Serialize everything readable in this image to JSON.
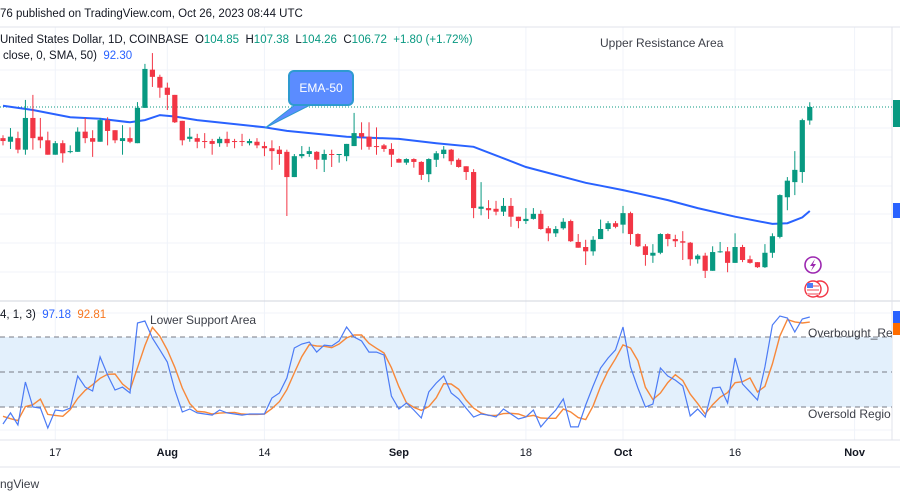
{
  "header": {
    "published": "76 published on TradingView.com, Oct 26, 2023 08:44 UTC",
    "symbol": "United States Dollar, 1D, COINBASE",
    "ohlc": {
      "open_label": "O",
      "open": "104.85",
      "high_label": "H",
      "high": "107.38",
      "low_label": "L",
      "low": "104.26",
      "close_label": "C",
      "close": "106.72",
      "change": "+1.80 (+1.72%)"
    },
    "ma_legend": "close, 0, SMA, 50)",
    "ma_value": "92.30",
    "stoch_legend": "4, 1, 3)",
    "stoch_k_value": "97.18",
    "stoch_d_value": "92.81"
  },
  "annotations": {
    "upper": "Upper Resistance Area",
    "lower": "Lower Support Area",
    "callout": "EMA-50",
    "overbought": "Overbought_Re",
    "oversold": "Oversold Regio"
  },
  "footer": {
    "watermark": "ngView"
  },
  "colors": {
    "up": "#089981",
    "down": "#f23645",
    "ma": "#2962ff",
    "stoch_k": "#4c7bf5",
    "stoch_d": "#f7883a",
    "band": "#e3f0fc"
  },
  "icons": [
    "lightning-event-icon",
    "us-flag-icon"
  ],
  "chart_data": [
    {
      "type": "candlestick",
      "title": "",
      "x_ticks": [
        {
          "date": "Jul 17",
          "label": "17"
        },
        {
          "date": "Aug 1",
          "label": "Aug",
          "bold": true
        },
        {
          "date": "Aug 14",
          "label": "14"
        },
        {
          "date": "Sep 1",
          "label": "Sep",
          "bold": true
        },
        {
          "date": "Sep 18",
          "label": "18"
        },
        {
          "date": "Oct 1",
          "label": "Oct",
          "bold": true
        },
        {
          "date": "Oct 16",
          "label": "16"
        },
        {
          "date": "Nov 1",
          "label": "Nov",
          "bold": true
        }
      ],
      "last_price": 106.72,
      "candles": [
        [
          "Jul 10",
          102.4,
          102.8,
          101.4,
          102.0
        ],
        [
          "Jul 11",
          101.9,
          103.8,
          100.9,
          102.6
        ],
        [
          "Jul 12",
          102.4,
          103.3,
          100.3,
          100.8
        ],
        [
          "Jul 13",
          100.8,
          107.7,
          100.1,
          105.2
        ],
        [
          "Jul 14",
          105.2,
          108.4,
          100.8,
          102.4
        ],
        [
          "Jul 15",
          102.6,
          105.2,
          101.0,
          102.1
        ],
        [
          "Jul 16",
          102.1,
          103.3,
          100.1,
          100.1
        ],
        [
          "Jul 17",
          100.1,
          102.0,
          100.1,
          101.7
        ],
        [
          "Jul 18",
          101.7,
          102.1,
          99.0,
          100.3
        ],
        [
          "Jul 19",
          100.5,
          101.4,
          100.3,
          100.6
        ],
        [
          "Jul 20",
          100.5,
          103.9,
          100.5,
          103.3
        ],
        [
          "Jul 21",
          103.3,
          105.2,
          101.7,
          102.4
        ],
        [
          "Jul 22",
          102.4,
          103.5,
          99.8,
          101.9
        ],
        [
          "Jul 23",
          101.9,
          105.2,
          101.9,
          104.9
        ],
        [
          "Jul 24",
          104.9,
          105.3,
          101.4,
          103.4
        ],
        [
          "Jul 25",
          103.5,
          103.5,
          101.7,
          102.1
        ],
        [
          "Jul 26",
          102.0,
          104.2,
          100.1,
          102.4
        ],
        [
          "Jul 27",
          102.4,
          103.9,
          101.7,
          101.9
        ],
        [
          "Jul 28",
          101.7,
          107.4,
          101.7,
          106.6
        ],
        [
          "Jul 29",
          106.6,
          112.7,
          106.6,
          112.0
        ],
        [
          "Jul 30",
          111.9,
          114.2,
          109.5,
          110.9
        ],
        [
          "Jul 31",
          110.9,
          111.2,
          108.0,
          109.4
        ],
        [
          "Aug 1",
          109.4,
          110.1,
          106.3,
          108.4
        ],
        [
          "Aug 2",
          108.4,
          108.4,
          104.5,
          104.6
        ],
        [
          "Aug 3",
          104.8,
          104.8,
          101.4,
          102.1
        ],
        [
          "Aug 4",
          102.3,
          103.8,
          101.9,
          102.6
        ],
        [
          "Aug 5",
          102.4,
          103.0,
          101.0,
          101.9
        ],
        [
          "Aug 6",
          102.0,
          103.1,
          101.0,
          101.9
        ],
        [
          "Aug 7",
          102.0,
          102.3,
          100.1,
          101.6
        ],
        [
          "Aug 8",
          101.7,
          102.6,
          101.2,
          102.3
        ],
        [
          "Aug 9",
          102.3,
          103.3,
          101.2,
          101.7
        ],
        [
          "Aug 10",
          102.0,
          102.3,
          101.0,
          101.9
        ],
        [
          "Aug 11",
          102.0,
          103.0,
          101.3,
          101.9
        ],
        [
          "Aug 12",
          101.7,
          102.3,
          101.4,
          102.0
        ],
        [
          "Aug 13",
          101.9,
          102.4,
          101.0,
          101.4
        ],
        [
          "Aug 14",
          101.3,
          101.9,
          99.9,
          101.0
        ],
        [
          "Aug 15",
          101.0,
          102.1,
          98.0,
          100.6
        ],
        [
          "Aug 16",
          100.8,
          101.3,
          98.7,
          100.2
        ],
        [
          "Aug 17",
          100.5,
          100.8,
          91.6,
          97.0
        ],
        [
          "Aug 18",
          97.0,
          100.2,
          97.0,
          99.9
        ],
        [
          "Aug 19",
          99.9,
          101.3,
          99.6,
          100.2
        ],
        [
          "Aug 20",
          100.2,
          101.2,
          99.8,
          100.6
        ],
        [
          "Aug 21",
          100.5,
          100.6,
          98.1,
          99.4
        ],
        [
          "Aug 22",
          99.4,
          100.8,
          97.7,
          100.2
        ],
        [
          "Aug 23",
          100.2,
          100.8,
          98.4,
          100.1
        ],
        [
          "Aug 24",
          100.1,
          100.2,
          99.0,
          100.2
        ],
        [
          "Aug 25",
          99.9,
          101.6,
          99.2,
          101.6
        ],
        [
          "Aug 26",
          101.3,
          105.9,
          101.3,
          103.1
        ],
        [
          "Aug 27",
          103.1,
          104.6,
          100.8,
          102.6
        ],
        [
          "Aug 28",
          102.6,
          104.6,
          100.8,
          101.2
        ],
        [
          "Aug 29",
          101.3,
          103.9,
          100.1,
          101.2
        ],
        [
          "Aug 30",
          101.4,
          101.6,
          100.5,
          100.9
        ],
        [
          "Aug 31",
          100.9,
          101.7,
          98.4,
          100.1
        ],
        [
          "Sep 1",
          99.5,
          99.6,
          99.0,
          99.0
        ],
        [
          "Sep 2",
          99.0,
          99.6,
          98.7,
          99.5
        ],
        [
          "Sep 3",
          99.5,
          99.6,
          98.3,
          99.1
        ],
        [
          "Sep 4",
          99.1,
          99.2,
          96.6,
          97.3
        ],
        [
          "Sep 5",
          97.4,
          99.6,
          96.3,
          99.5
        ],
        [
          "Sep 6",
          99.4,
          100.6,
          98.4,
          100.3
        ],
        [
          "Sep 7",
          100.2,
          101.3,
          99.6,
          100.8
        ],
        [
          "Sep 8",
          100.8,
          100.9,
          98.7,
          99.2
        ],
        [
          "Sep 9",
          99.4,
          99.6,
          98.3,
          98.4
        ],
        [
          "Sep 10",
          98.5,
          98.5,
          96.6,
          97.7
        ],
        [
          "Sep 11",
          97.7,
          98.1,
          91.3,
          92.7
        ],
        [
          "Sep 12",
          92.6,
          96.3,
          91.7,
          92.9
        ],
        [
          "Sep 13",
          92.7,
          93.8,
          91.2,
          92.4
        ],
        [
          "Sep 14",
          92.6,
          93.7,
          91.7,
          92.2
        ],
        [
          "Sep 15",
          92.2,
          94.1,
          91.6,
          93.0
        ],
        [
          "Sep 16",
          93.0,
          94.1,
          90.1,
          91.5
        ],
        [
          "Sep 17",
          91.5,
          91.5,
          89.9,
          90.9
        ],
        [
          "Sep 18",
          90.9,
          92.7,
          90.5,
          91.2
        ],
        [
          "Sep 19",
          91.2,
          92.7,
          91.1,
          91.9
        ],
        [
          "Sep 20",
          91.9,
          92.4,
          89.7,
          89.8
        ],
        [
          "Sep 21",
          89.9,
          90.2,
          88.1,
          89.2
        ],
        [
          "Sep 22",
          89.2,
          90.2,
          88.7,
          89.8
        ],
        [
          "Sep 23",
          89.9,
          91.3,
          89.7,
          90.8
        ],
        [
          "Sep 24",
          90.9,
          91.1,
          88.0,
          88.1
        ],
        [
          "Sep 25",
          88.0,
          89.1,
          87.2,
          87.2
        ],
        [
          "Sep 26",
          87.3,
          88.3,
          84.8,
          86.7
        ],
        [
          "Sep 27",
          86.7,
          88.8,
          86.1,
          88.3
        ],
        [
          "Sep 28",
          88.4,
          91.1,
          88.4,
          89.8
        ],
        [
          "Sep 29",
          89.8,
          90.9,
          89.5,
          90.6
        ],
        [
          "Sep 30",
          90.6,
          90.9,
          89.9,
          90.1
        ],
        [
          "Oct 1",
          90.4,
          93.0,
          89.2,
          92.0
        ],
        [
          "Oct 2",
          92.0,
          92.2,
          87.6,
          89.1
        ],
        [
          "Oct 3",
          89.1,
          89.2,
          87.3,
          87.4
        ],
        [
          "Oct 4",
          87.4,
          87.7,
          84.7,
          86.2
        ],
        [
          "Oct 5",
          86.1,
          87.7,
          85.1,
          86.5
        ],
        [
          "Oct 6",
          86.5,
          89.2,
          86.3,
          89.1
        ],
        [
          "Oct 7",
          89.1,
          89.2,
          87.4,
          88.4
        ],
        [
          "Oct 8",
          88.4,
          89.0,
          87.3,
          88.1
        ],
        [
          "Oct 9",
          88.1,
          89.5,
          85.5,
          87.9
        ],
        [
          "Oct 10",
          87.9,
          88.0,
          84.7,
          85.6
        ],
        [
          "Oct 11",
          85.6,
          86.3,
          85.0,
          86.1
        ],
        [
          "Oct 12",
          86.1,
          86.5,
          83.0,
          84.0
        ],
        [
          "Oct 13",
          84.0,
          87.4,
          84.0,
          86.6
        ],
        [
          "Oct 14",
          86.6,
          88.0,
          86.5,
          86.7
        ],
        [
          "Oct 15",
          86.7,
          87.3,
          83.8,
          85.1
        ],
        [
          "Oct 16",
          85.1,
          89.2,
          85.1,
          87.3
        ],
        [
          "Oct 17",
          87.3,
          87.6,
          85.2,
          85.5
        ],
        [
          "Oct 18",
          85.6,
          86.1,
          85.0,
          85.1
        ],
        [
          "Oct 19",
          85.2,
          85.2,
          84.4,
          84.5
        ],
        [
          "Oct 20",
          84.5,
          87.7,
          84.4,
          86.5
        ],
        [
          "Oct 21",
          86.5,
          89.2,
          85.8,
          88.8
        ],
        [
          "Oct 22",
          88.7,
          94.6,
          88.5,
          94.5
        ],
        [
          "Oct 23",
          94.2,
          97.0,
          92.4,
          96.5
        ],
        [
          "Oct 24",
          96.3,
          100.6,
          94.5,
          98.0
        ],
        [
          "Oct 25",
          97.7,
          105.1,
          96.2,
          104.9
        ],
        [
          "Oct 26",
          104.85,
          107.38,
          104.26,
          106.72
        ]
      ],
      "moving_average": [
        [
          "Jul 10",
          106.9
        ],
        [
          "Jul 14",
          106.3
        ],
        [
          "Jul 19",
          105.3
        ],
        [
          "Jul 23",
          105.1
        ],
        [
          "Jul 27",
          104.6
        ],
        [
          "Jul 29",
          104.9
        ],
        [
          "Jul 31",
          105.6
        ],
        [
          "Aug 2",
          105.4
        ],
        [
          "Aug 5",
          104.9
        ],
        [
          "Aug 14",
          103.9
        ],
        [
          "Aug 17",
          103.4
        ],
        [
          "Aug 25",
          102.6
        ],
        [
          "Sep 1",
          102.3
        ],
        [
          "Sep 6",
          101.7
        ],
        [
          "Sep 11",
          101.2
        ],
        [
          "Sep 18",
          98.4
        ],
        [
          "Sep 26",
          96.2
        ],
        [
          "Sep 28",
          95.8
        ],
        [
          "Oct 1",
          95.2
        ],
        [
          "Oct 7",
          93.8
        ],
        [
          "Oct 11",
          92.7
        ],
        [
          "Oct 16",
          91.5
        ],
        [
          "Oct 21",
          90.5
        ],
        [
          "Oct 23",
          90.6
        ],
        [
          "Oct 25",
          91.4
        ],
        [
          "Oct 26",
          92.3
        ]
      ]
    },
    {
      "type": "line",
      "title": "",
      "levels": {
        "overbought": 80,
        "middle": 50,
        "oversold": 20
      },
      "ylim": [
        0,
        100
      ],
      "series": [
        {
          "values": [
            5.4,
            14.9,
            4.6,
            41.4,
            20,
            19.1,
            2,
            17.4,
            16.6,
            19.1,
            46.6,
            37.1,
            33.7,
            62.9,
            47.4,
            34.6,
            37.1,
            32,
            92,
            93.7,
            79.1,
            68.9,
            58.6,
            34.6,
            15.7,
            18.3,
            14.9,
            14,
            13.1,
            17.4,
            14.9,
            14,
            13.1,
            14,
            14,
            14,
            27.7,
            32,
            44.9,
            70.6,
            74,
            75.7,
            67.1,
            73.1,
            72.3,
            76.6,
            88.6,
            80,
            76.6,
            67.1,
            67.1,
            64.6,
            29.4,
            18.3,
            23.4,
            17.4,
            10.6,
            32.9,
            40.6,
            46.6,
            32,
            26.9,
            19.1,
            11.4,
            14,
            13.1,
            11.4,
            18.3,
            14,
            9.7,
            11.4,
            17.4,
            2.9,
            10.6,
            17.4,
            26.9,
            2.9,
            2.9,
            21.7,
            38,
            53.4,
            62,
            68.9,
            88.6,
            54.3,
            36.3,
            20,
            22.6,
            53.4,
            46.6,
            43.1,
            38,
            12.3,
            18.3,
            11.4,
            36.3,
            37.1,
            23.4,
            62,
            39.7,
            32.9,
            26,
            54.3,
            90.3,
            98,
            96.3,
            84.3,
            95.4,
            97.18
          ]
        },
        {
          "values": [
            12,
            10,
            8.3,
            20.3,
            22,
            26.8,
            13.7,
            12.8,
            12,
            17.7,
            27.4,
            34.3,
            39.1,
            44.6,
            48,
            48.3,
            39.7,
            34.6,
            53.7,
            72.6,
            88.3,
            80.6,
            68.9,
            54,
            36.3,
            22.9,
            16.3,
            15.7,
            14,
            14.8,
            15.1,
            15.4,
            14,
            13.7,
            13.7,
            14,
            18.6,
            24.6,
            34.9,
            49.2,
            63.2,
            73.4,
            72.3,
            72,
            70.8,
            74,
            79.2,
            81.7,
            81.7,
            74.6,
            70.3,
            66.3,
            53.7,
            37.4,
            23.7,
            19.7,
            17.1,
            20.3,
            28,
            40,
            39.7,
            35.2,
            26,
            19.1,
            14.8,
            12.8,
            12.8,
            14.3,
            14.6,
            14,
            11.7,
            12.8,
            10.6,
            10.3,
            10.3,
            18.3,
            15.7,
            10.9,
            9.2,
            20.9,
            37.7,
            51.1,
            61.4,
            73.2,
            70.6,
            59.7,
            36.9,
            26.3,
            32,
            40.9,
            47.7,
            42.6,
            31.1,
            22.9,
            14,
            22,
            28.3,
            32.3,
            40.8,
            41.7,
            44.9,
            32.9,
            37.7,
            56.9,
            80.9,
            94.9,
            92.9,
            92,
            92.81
          ]
        }
      ]
    }
  ]
}
